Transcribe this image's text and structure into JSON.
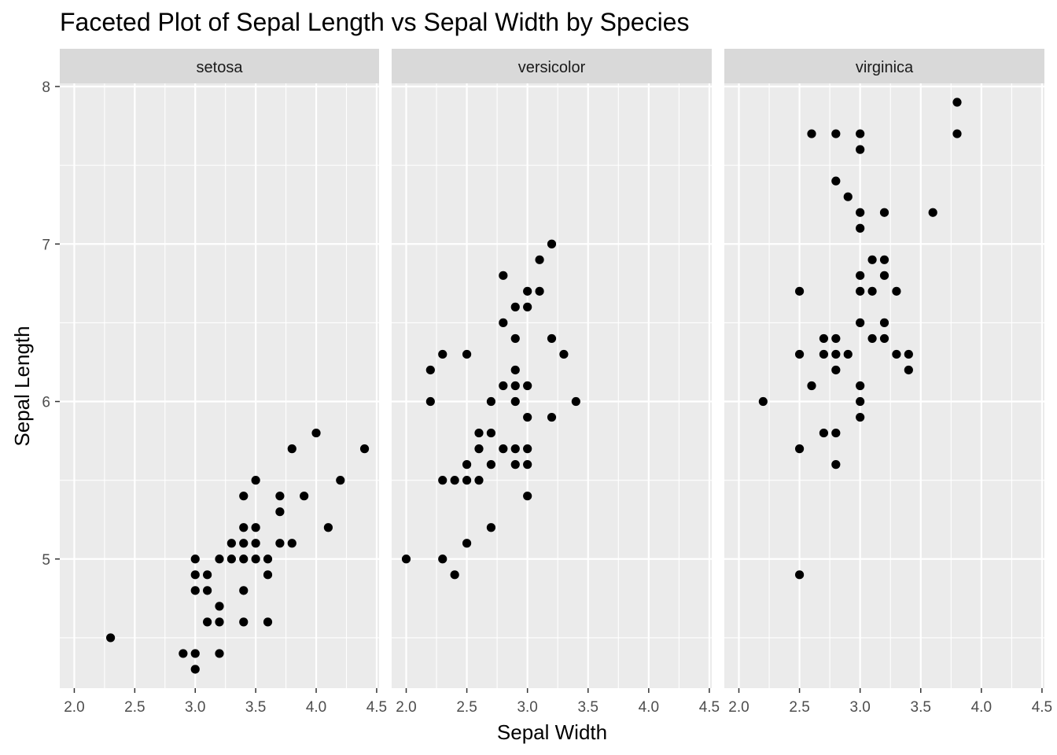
{
  "chart_data": {
    "type": "scatter",
    "title": "Faceted Plot of Sepal Length vs Sepal Width by Species",
    "xlabel": "Sepal Width",
    "ylabel": "Sepal Length",
    "xlim": [
      1.88,
      4.52
    ],
    "ylim": [
      4.18,
      8.02
    ],
    "x_ticks": [
      "2.0",
      "2.5",
      "3.0",
      "3.5",
      "4.0",
      "4.5"
    ],
    "y_ticks": [
      "5",
      "6",
      "7",
      "8"
    ],
    "point_color": "#000000",
    "panel_color": "#ebebeb",
    "strip_color": "#d9d9d9",
    "grid_color": "#ffffff",
    "facets": [
      {
        "label": "setosa",
        "points": [
          [
            2.3,
            4.5
          ],
          [
            2.9,
            4.4
          ],
          [
            3.0,
            4.3
          ],
          [
            3.0,
            4.4
          ],
          [
            3.0,
            4.8
          ],
          [
            3.0,
            4.9
          ],
          [
            3.0,
            5.0
          ],
          [
            3.1,
            4.6
          ],
          [
            3.1,
            4.8
          ],
          [
            3.1,
            4.9
          ],
          [
            3.2,
            4.4
          ],
          [
            3.2,
            4.6
          ],
          [
            3.2,
            4.7
          ],
          [
            3.2,
            5.0
          ],
          [
            3.3,
            5.0
          ],
          [
            3.3,
            5.1
          ],
          [
            3.4,
            4.6
          ],
          [
            3.4,
            4.8
          ],
          [
            3.4,
            5.0
          ],
          [
            3.4,
            5.1
          ],
          [
            3.4,
            5.2
          ],
          [
            3.4,
            5.4
          ],
          [
            3.5,
            5.0
          ],
          [
            3.5,
            5.1
          ],
          [
            3.5,
            5.2
          ],
          [
            3.5,
            5.5
          ],
          [
            3.6,
            4.6
          ],
          [
            3.6,
            4.9
          ],
          [
            3.6,
            5.0
          ],
          [
            3.7,
            5.1
          ],
          [
            3.7,
            5.3
          ],
          [
            3.7,
            5.4
          ],
          [
            3.8,
            5.1
          ],
          [
            3.8,
            5.7
          ],
          [
            3.9,
            5.4
          ],
          [
            4.0,
            5.8
          ],
          [
            4.1,
            5.2
          ],
          [
            4.2,
            5.5
          ],
          [
            4.4,
            5.7
          ]
        ]
      },
      {
        "label": "versicolor",
        "points": [
          [
            2.0,
            5.0
          ],
          [
            2.2,
            6.0
          ],
          [
            2.2,
            6.2
          ],
          [
            2.3,
            5.0
          ],
          [
            2.3,
            5.5
          ],
          [
            2.3,
            6.3
          ],
          [
            2.4,
            4.9
          ],
          [
            2.4,
            5.5
          ],
          [
            2.5,
            5.1
          ],
          [
            2.5,
            5.5
          ],
          [
            2.5,
            5.6
          ],
          [
            2.5,
            6.3
          ],
          [
            2.6,
            5.5
          ],
          [
            2.6,
            5.7
          ],
          [
            2.6,
            5.8
          ],
          [
            2.7,
            5.2
          ],
          [
            2.7,
            5.6
          ],
          [
            2.7,
            5.8
          ],
          [
            2.7,
            6.0
          ],
          [
            2.8,
            5.7
          ],
          [
            2.8,
            6.1
          ],
          [
            2.8,
            6.5
          ],
          [
            2.8,
            6.8
          ],
          [
            2.9,
            5.6
          ],
          [
            2.9,
            5.7
          ],
          [
            2.9,
            6.0
          ],
          [
            2.9,
            6.1
          ],
          [
            2.9,
            6.2
          ],
          [
            2.9,
            6.4
          ],
          [
            2.9,
            6.6
          ],
          [
            3.0,
            5.4
          ],
          [
            3.0,
            5.6
          ],
          [
            3.0,
            5.7
          ],
          [
            3.0,
            5.9
          ],
          [
            3.0,
            6.1
          ],
          [
            3.0,
            6.6
          ],
          [
            3.0,
            6.7
          ],
          [
            3.1,
            6.7
          ],
          [
            3.1,
            6.9
          ],
          [
            3.2,
            5.9
          ],
          [
            3.2,
            6.4
          ],
          [
            3.2,
            7.0
          ],
          [
            3.3,
            6.3
          ],
          [
            3.4,
            6.0
          ]
        ]
      },
      {
        "label": "virginica",
        "points": [
          [
            2.2,
            6.0
          ],
          [
            2.5,
            4.9
          ],
          [
            2.5,
            5.7
          ],
          [
            2.5,
            6.3
          ],
          [
            2.5,
            6.7
          ],
          [
            2.6,
            6.1
          ],
          [
            2.6,
            7.7
          ],
          [
            2.7,
            5.8
          ],
          [
            2.7,
            6.3
          ],
          [
            2.7,
            6.4
          ],
          [
            2.8,
            5.6
          ],
          [
            2.8,
            5.8
          ],
          [
            2.8,
            6.2
          ],
          [
            2.8,
            6.3
          ],
          [
            2.8,
            6.4
          ],
          [
            2.8,
            7.4
          ],
          [
            2.8,
            7.7
          ],
          [
            2.9,
            6.3
          ],
          [
            2.9,
            7.3
          ],
          [
            3.0,
            5.9
          ],
          [
            3.0,
            6.0
          ],
          [
            3.0,
            6.1
          ],
          [
            3.0,
            6.5
          ],
          [
            3.0,
            6.7
          ],
          [
            3.0,
            6.8
          ],
          [
            3.0,
            7.1
          ],
          [
            3.0,
            7.2
          ],
          [
            3.0,
            7.6
          ],
          [
            3.0,
            7.7
          ],
          [
            3.1,
            6.4
          ],
          [
            3.1,
            6.7
          ],
          [
            3.1,
            6.9
          ],
          [
            3.2,
            6.4
          ],
          [
            3.2,
            6.5
          ],
          [
            3.2,
            6.8
          ],
          [
            3.2,
            6.9
          ],
          [
            3.2,
            7.2
          ],
          [
            3.3,
            6.3
          ],
          [
            3.3,
            6.7
          ],
          [
            3.4,
            6.2
          ],
          [
            3.4,
            6.3
          ],
          [
            3.6,
            7.2
          ],
          [
            3.8,
            7.7
          ],
          [
            3.8,
            7.9
          ]
        ]
      }
    ]
  }
}
